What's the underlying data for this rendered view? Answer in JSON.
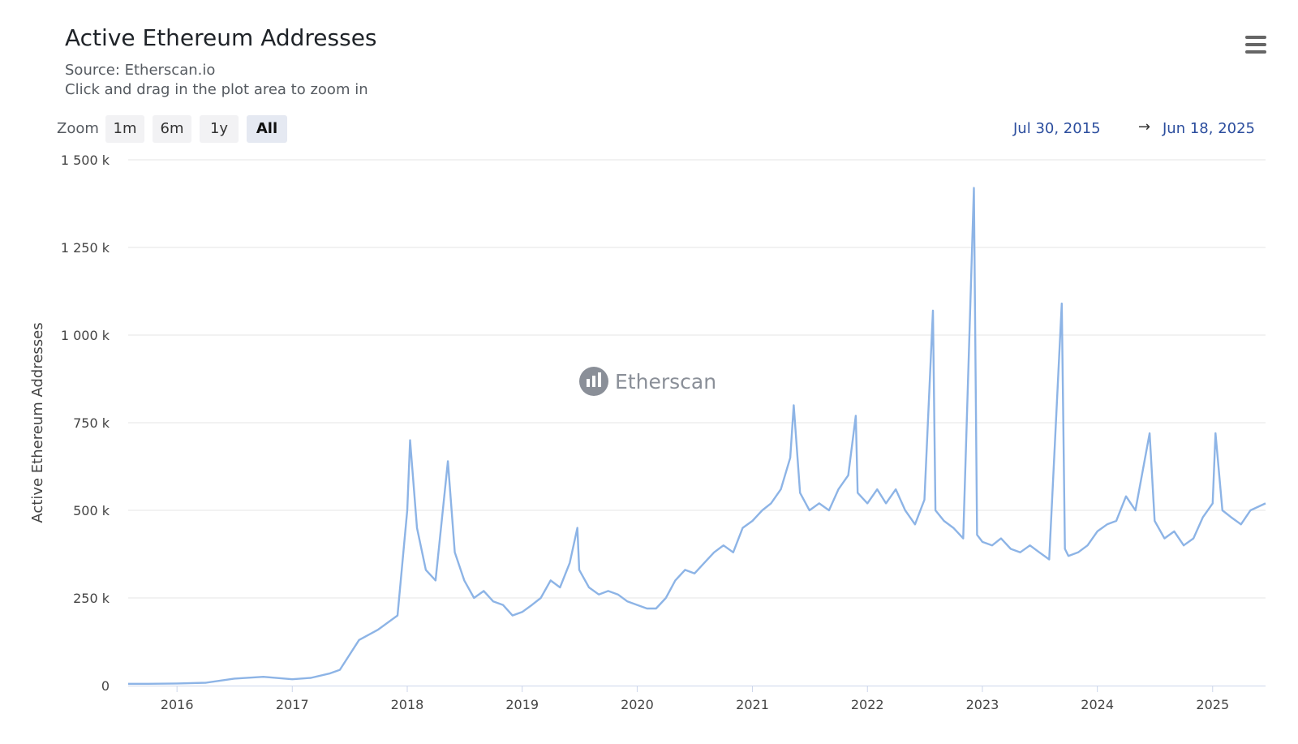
{
  "header": {
    "title": "Active Ethereum Addresses",
    "source": "Source: Etherscan.io",
    "hint": "Click and drag in the plot area to zoom in"
  },
  "zoom": {
    "label": "Zoom",
    "buttons": [
      "1m",
      "6m",
      "1y",
      "All"
    ],
    "selected": "All"
  },
  "range": {
    "from": "Jul 30, 2015",
    "arrow": "→",
    "to": "Jun 18, 2025"
  },
  "watermark": {
    "text": "Etherscan",
    "icon": "etherscan-logo-icon"
  },
  "colors": {
    "series": "#8db4e6",
    "grid": "#e6e6e6",
    "range": "#2c4e9e"
  },
  "chart_data": {
    "type": "line",
    "title": "Active Ethereum Addresses",
    "subtitle": "Source: Etherscan.io",
    "xlabel": "",
    "ylabel": "Active Ethereum Addresses",
    "xlim": [
      "2015-07-30",
      "2025-06-18"
    ],
    "ylim": [
      0,
      1500000
    ],
    "y_ticks": [
      0,
      250000,
      500000,
      750000,
      1000000,
      1250000,
      1500000
    ],
    "y_tick_labels": [
      "0",
      "250 k",
      "500 k",
      "750 k",
      "1 000 k",
      "1 250 k",
      "1 500 k"
    ],
    "x_ticks": [
      "2016-01-01",
      "2017-01-01",
      "2018-01-01",
      "2019-01-01",
      "2020-01-01",
      "2021-01-01",
      "2022-01-01",
      "2023-01-01",
      "2024-01-01",
      "2025-01-01"
    ],
    "x_tick_labels": [
      "2016",
      "2017",
      "2018",
      "2019",
      "2020",
      "2021",
      "2022",
      "2023",
      "2024",
      "2025"
    ],
    "grid": true,
    "legend": "none",
    "series": [
      {
        "color": "#8db4e6",
        "x": [
          "2015-07-30",
          "2015-10-01",
          "2016-01-01",
          "2016-04-01",
          "2016-07-01",
          "2016-10-01",
          "2017-01-01",
          "2017-03-01",
          "2017-05-01",
          "2017-06-01",
          "2017-08-01",
          "2017-10-01",
          "2017-12-01",
          "2018-01-01",
          "2018-01-10",
          "2018-02-01",
          "2018-03-01",
          "2018-04-01",
          "2018-05-10",
          "2018-06-01",
          "2018-07-01",
          "2018-08-01",
          "2018-09-01",
          "2018-10-01",
          "2018-11-01",
          "2018-12-01",
          "2019-01-01",
          "2019-02-01",
          "2019-03-01",
          "2019-04-01",
          "2019-05-01",
          "2019-06-01",
          "2019-06-25",
          "2019-07-01",
          "2019-08-01",
          "2019-09-01",
          "2019-10-01",
          "2019-11-01",
          "2019-12-01",
          "2020-01-01",
          "2020-02-01",
          "2020-03-01",
          "2020-04-01",
          "2020-05-01",
          "2020-06-01",
          "2020-07-01",
          "2020-08-01",
          "2020-09-01",
          "2020-10-01",
          "2020-11-01",
          "2020-12-01",
          "2021-01-01",
          "2021-02-01",
          "2021-03-01",
          "2021-04-01",
          "2021-05-01",
          "2021-05-12",
          "2021-06-01",
          "2021-07-01",
          "2021-08-01",
          "2021-09-01",
          "2021-10-01",
          "2021-11-01",
          "2021-11-25",
          "2021-12-01",
          "2022-01-01",
          "2022-02-01",
          "2022-03-01",
          "2022-04-01",
          "2022-05-01",
          "2022-06-01",
          "2022-07-01",
          "2022-07-28",
          "2022-08-05",
          "2022-09-01",
          "2022-10-01",
          "2022-11-01",
          "2022-12-05",
          "2022-12-15",
          "2023-01-01",
          "2023-02-01",
          "2023-03-01",
          "2023-04-01",
          "2023-05-01",
          "2023-06-01",
          "2023-07-01",
          "2023-08-01",
          "2023-09-10",
          "2023-09-20",
          "2023-10-01",
          "2023-11-01",
          "2023-12-01",
          "2024-01-01",
          "2024-02-01",
          "2024-03-01",
          "2024-04-01",
          "2024-05-01",
          "2024-06-15",
          "2024-07-01",
          "2024-08-01",
          "2024-09-01",
          "2024-10-01",
          "2024-11-01",
          "2024-12-01",
          "2025-01-01",
          "2025-01-10",
          "2025-02-01",
          "2025-03-01",
          "2025-04-01",
          "2025-05-01",
          "2025-06-18"
        ],
        "values": [
          5000,
          5000,
          6000,
          8000,
          20000,
          25000,
          18000,
          22000,
          35000,
          45000,
          130000,
          160000,
          200000,
          500000,
          700000,
          450000,
          330000,
          300000,
          640000,
          380000,
          300000,
          250000,
          270000,
          240000,
          230000,
          200000,
          210000,
          230000,
          250000,
          300000,
          280000,
          350000,
          450000,
          330000,
          280000,
          260000,
          270000,
          260000,
          240000,
          230000,
          220000,
          220000,
          250000,
          300000,
          330000,
          320000,
          350000,
          380000,
          400000,
          380000,
          450000,
          470000,
          500000,
          520000,
          560000,
          650000,
          800000,
          550000,
          500000,
          520000,
          500000,
          560000,
          600000,
          770000,
          550000,
          520000,
          560000,
          520000,
          560000,
          500000,
          460000,
          530000,
          1070000,
          500000,
          470000,
          450000,
          420000,
          1420000,
          430000,
          410000,
          400000,
          420000,
          390000,
          380000,
          400000,
          380000,
          360000,
          1090000,
          390000,
          370000,
          380000,
          400000,
          440000,
          460000,
          470000,
          540000,
          500000,
          720000,
          470000,
          420000,
          440000,
          400000,
          420000,
          480000,
          520000,
          720000,
          500000,
          480000,
          460000,
          500000,
          520000
        ]
      }
    ]
  }
}
